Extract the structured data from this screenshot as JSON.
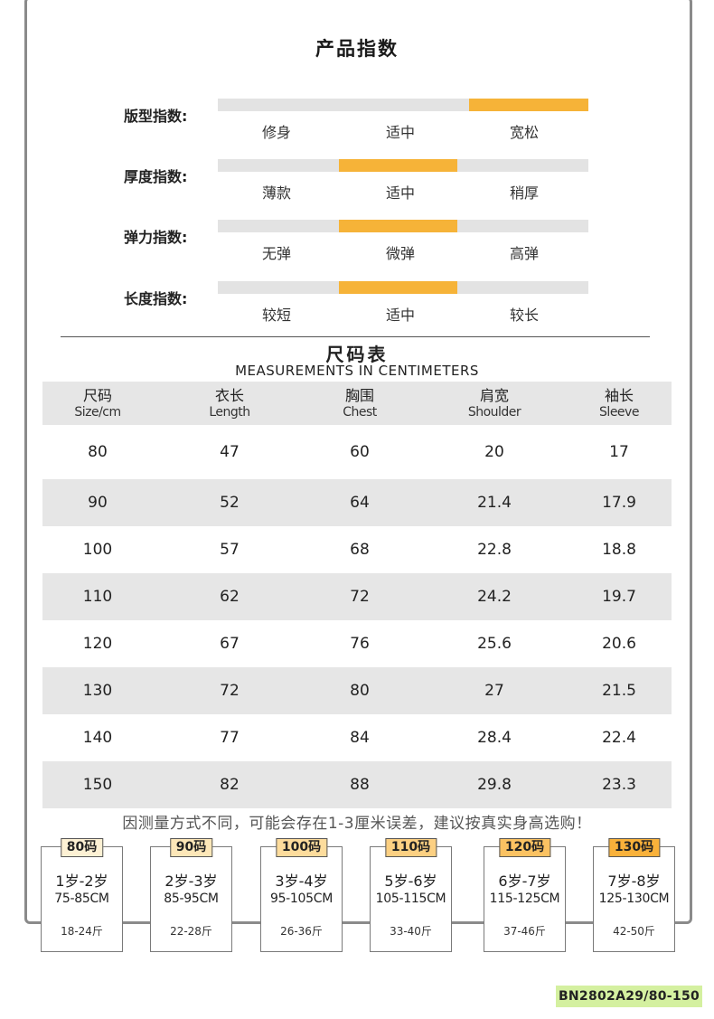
{
  "title": "产品指数",
  "indices": [
    {
      "label": "版型指数:",
      "options": [
        "修身",
        "适中",
        "宽松"
      ],
      "selected": 2
    },
    {
      "label": "厚度指数:",
      "options": [
        "薄款",
        "适中",
        "稍厚"
      ],
      "selected": 1
    },
    {
      "label": "弹力指数:",
      "options": [
        "无弹",
        "微弹",
        "高弹"
      ],
      "selected": 1
    },
    {
      "label": "长度指数:",
      "options": [
        "较短",
        "适中",
        "较长"
      ],
      "selected": 1
    }
  ],
  "size_chart": {
    "title": "尺码表",
    "subtitle": "MEASUREMENTS IN CENTIMETERS",
    "headers": [
      {
        "zh": "尺码",
        "en": "Size/cm"
      },
      {
        "zh": "衣长",
        "en": "Length"
      },
      {
        "zh": "胸围",
        "en": "Chest"
      },
      {
        "zh": "肩宽",
        "en": "Shoulder"
      },
      {
        "zh": "袖长",
        "en": "Sleeve"
      }
    ],
    "rows": [
      [
        "80",
        "47",
        "60",
        "20",
        "17"
      ],
      [
        "90",
        "52",
        "64",
        "21.4",
        "17.9"
      ],
      [
        "100",
        "57",
        "68",
        "22.8",
        "18.8"
      ],
      [
        "110",
        "62",
        "72",
        "24.2",
        "19.7"
      ],
      [
        "120",
        "67",
        "76",
        "25.6",
        "20.6"
      ],
      [
        "130",
        "72",
        "80",
        "27",
        "21.5"
      ],
      [
        "140",
        "77",
        "84",
        "28.4",
        "22.4"
      ],
      [
        "150",
        "82",
        "88",
        "29.8",
        "23.3"
      ]
    ]
  },
  "notice": "因测量方式不同，可能会存在1-3厘米误差，建议按真实身高选购！",
  "size_cards": [
    {
      "tag": "80码",
      "age": "1岁-2岁",
      "height": "75-85CM",
      "weight": "18-24斤",
      "color": "#fdf1d4"
    },
    {
      "tag": "90码",
      "age": "2岁-3岁",
      "height": "85-95CM",
      "weight": "22-28斤",
      "color": "#fde7b8"
    },
    {
      "tag": "100码",
      "age": "3岁-4岁",
      "height": "95-105CM",
      "weight": "26-36斤",
      "color": "#fddc9c"
    },
    {
      "tag": "110码",
      "age": "5岁-6岁",
      "height": "105-115CM",
      "weight": "33-40斤",
      "color": "#fcd082"
    },
    {
      "tag": "120码",
      "age": "6岁-7岁",
      "height": "115-125CM",
      "weight": "37-46斤",
      "color": "#fbc262"
    },
    {
      "tag": "130码",
      "age": "7岁-8岁",
      "height": "125-130CM",
      "weight": "42-50斤",
      "color": "#f9b13a"
    }
  ],
  "product_code": "BN2802A29/80-150"
}
